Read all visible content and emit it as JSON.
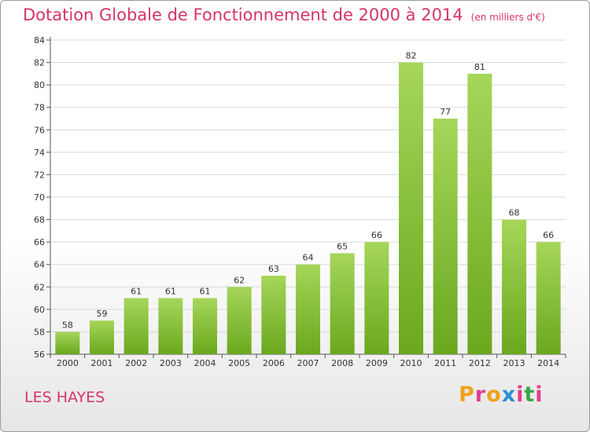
{
  "header": {
    "title": "Dotation Globale de Fonctionnement de 2000 à 2014",
    "subtitle": "(en milliers d'€)"
  },
  "footer": {
    "city": "LES HAYES",
    "brand_letters": [
      "P",
      "r",
      "o",
      "x",
      "i",
      "t",
      "i"
    ],
    "brand_colors": [
      "#f0a21c",
      "#e23e8a",
      "#f0a21c",
      "#2a8fd8",
      "#e23e8a",
      "#3aa64a",
      "#e23e8a"
    ]
  },
  "colors": {
    "bar_light": "#a6d65a",
    "bar_dark": "#6aa81e",
    "axis": "#555555",
    "grid": "#d9d9d9",
    "title": "#d6336c"
  },
  "chart_data": {
    "type": "bar",
    "categories": [
      "2000",
      "2001",
      "2002",
      "2003",
      "2004",
      "2005",
      "2006",
      "2007",
      "2008",
      "2009",
      "2010",
      "2011",
      "2012",
      "2013",
      "2014"
    ],
    "values": [
      58,
      59,
      61,
      61,
      61,
      62,
      63,
      64,
      65,
      66,
      82,
      77,
      81,
      68,
      66
    ],
    "yticks": [
      56,
      58,
      60,
      62,
      64,
      66,
      68,
      70,
      72,
      74,
      76,
      78,
      80,
      82,
      84
    ],
    "ylim": [
      56,
      84
    ],
    "grid": true
  }
}
